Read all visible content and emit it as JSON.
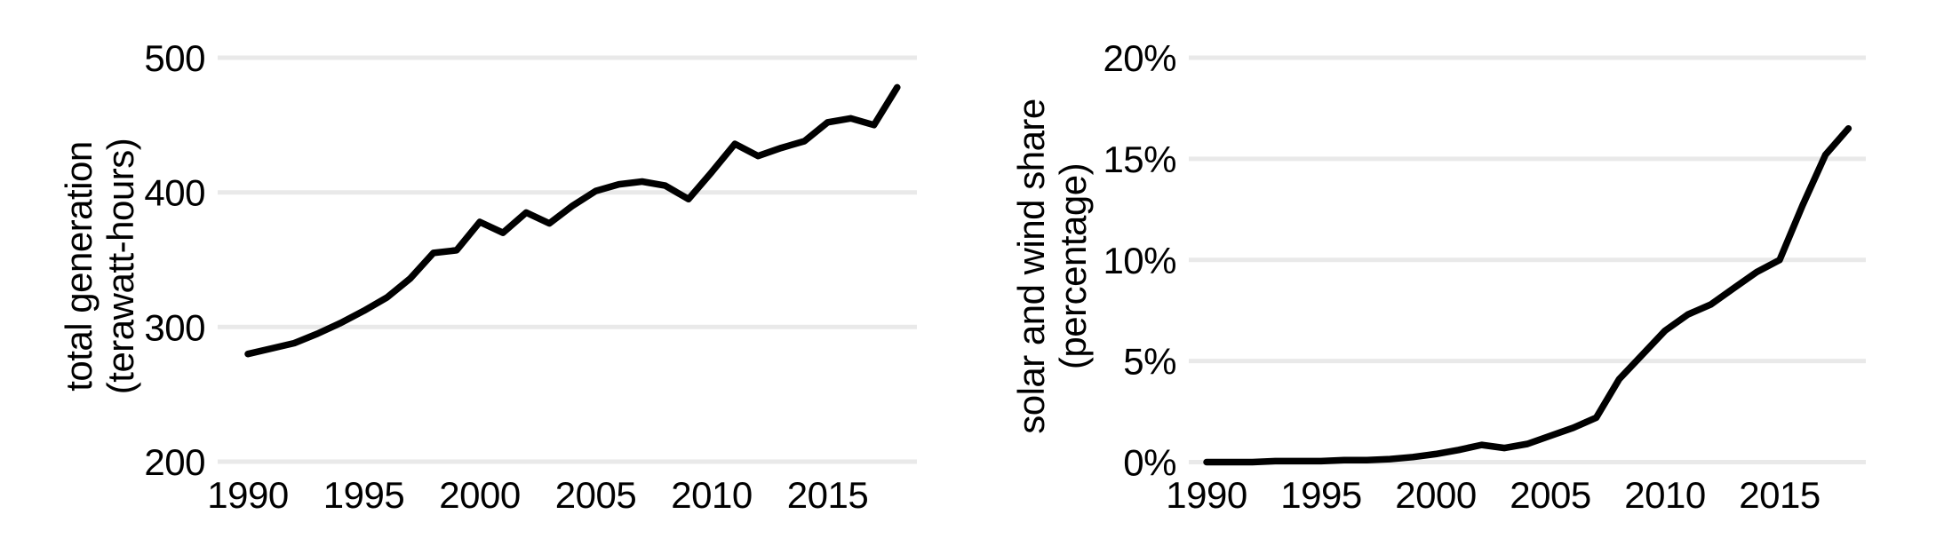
{
  "figure": {
    "description": "Two side-by-side line charts, annual data 1990-2018, no titles, no legend, light horizontal gridlines only"
  },
  "colors": {
    "line": "#000000",
    "grid": "#e9e9e9",
    "text": "#000000",
    "background": "#ffffff"
  },
  "chart_data": [
    {
      "type": "line",
      "title": "",
      "ylabel_line1": "total generation",
      "ylabel_line2": "(terawatt-hours)",
      "xlabel": "",
      "x": [
        1990,
        1991,
        1992,
        1993,
        1994,
        1995,
        1996,
        1997,
        1998,
        1999,
        2000,
        2001,
        2002,
        2003,
        2004,
        2005,
        2006,
        2007,
        2008,
        2009,
        2010,
        2011,
        2012,
        2013,
        2014,
        2015,
        2016,
        2017,
        2018
      ],
      "values": [
        280,
        284,
        288,
        295,
        303,
        312,
        322,
        336,
        355,
        357,
        378,
        370,
        385,
        377,
        390,
        401,
        406,
        408,
        405,
        395,
        415,
        436,
        427,
        433,
        438,
        452,
        455,
        450,
        478
      ],
      "ylim": [
        200,
        500
      ],
      "xlim": [
        1990,
        2018
      ],
      "ytick_values": [
        200,
        300,
        400,
        500
      ],
      "ytick_labels": [
        "200",
        "300",
        "400",
        "500"
      ],
      "xtick_values": [
        1990,
        1995,
        2000,
        2005,
        2010,
        2015
      ],
      "xtick_labels": [
        "1990",
        "1995",
        "2000",
        "2005",
        "2010",
        "2015"
      ],
      "grid": "horizontal",
      "legend": "none"
    },
    {
      "type": "line",
      "title": "",
      "ylabel_line1": "solar and wind share",
      "ylabel_line2": "(percentage)",
      "xlabel": "",
      "x": [
        1990,
        1991,
        1992,
        1993,
        1994,
        1995,
        1996,
        1997,
        1998,
        1999,
        2000,
        2001,
        2002,
        2003,
        2004,
        2005,
        2006,
        2007,
        2008,
        2009,
        2010,
        2011,
        2012,
        2013,
        2014,
        2015,
        2016,
        2017,
        2018
      ],
      "values": [
        0.0,
        0.0,
        0.0,
        0.05,
        0.05,
        0.05,
        0.1,
        0.1,
        0.15,
        0.25,
        0.4,
        0.6,
        0.85,
        0.7,
        0.9,
        1.3,
        1.7,
        2.2,
        4.1,
        5.3,
        6.5,
        7.3,
        7.8,
        8.6,
        9.4,
        10.0,
        12.7,
        15.2,
        16.5
      ],
      "ylim": [
        0,
        20
      ],
      "xlim": [
        1990,
        2018
      ],
      "ytick_values": [
        0,
        5,
        10,
        15,
        20
      ],
      "ytick_labels": [
        "0%",
        "5%",
        "10%",
        "15%",
        "20%"
      ],
      "xtick_values": [
        1990,
        1995,
        2000,
        2005,
        2010,
        2015
      ],
      "xtick_labels": [
        "1990",
        "1995",
        "2000",
        "2005",
        "2010",
        "2015"
      ],
      "grid": "horizontal",
      "legend": "none"
    }
  ]
}
